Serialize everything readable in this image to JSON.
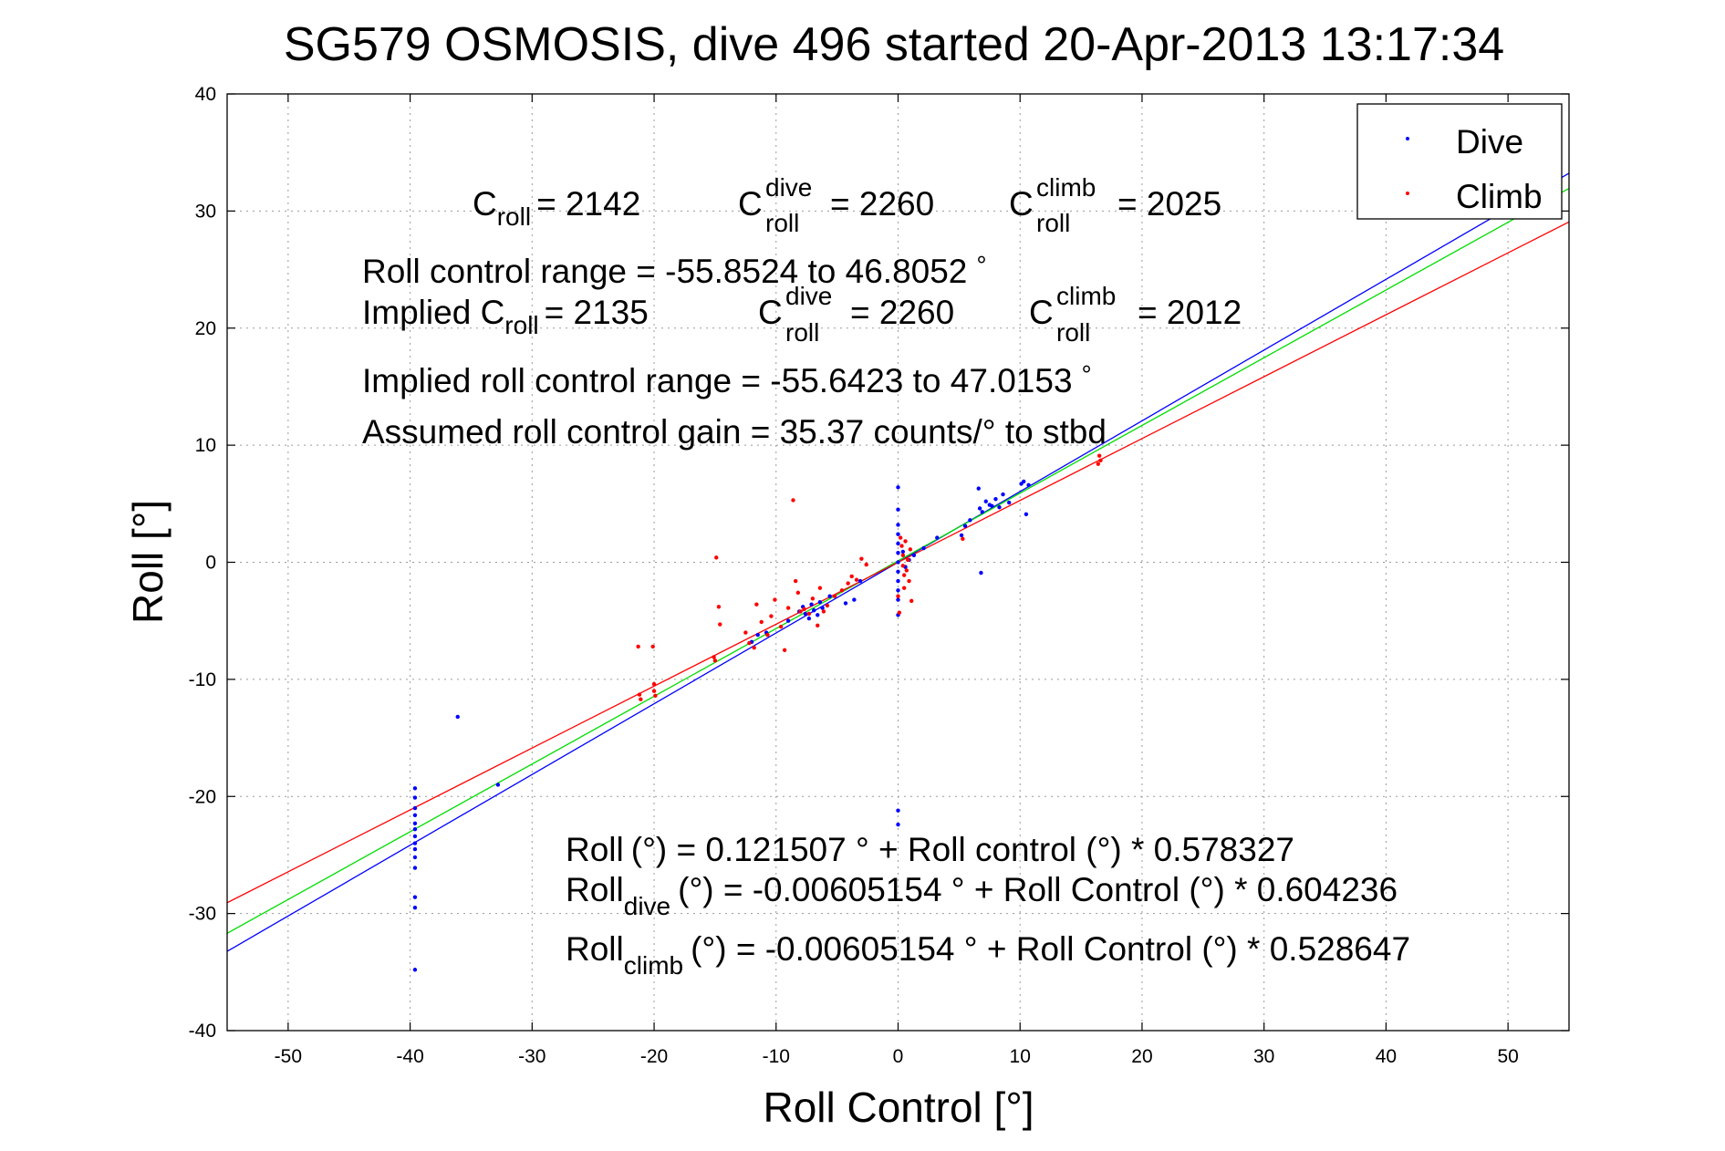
{
  "chart_data": {
    "type": "scatter",
    "title": "SG579 OSMOSIS, dive 496 started 20-Apr-2013 13:17:34",
    "xlabel": "Roll Control [°]",
    "ylabel": "Roll [°]",
    "xlim": [
      -55,
      55
    ],
    "ylim": [
      -40,
      40
    ],
    "xticks": [
      -50,
      -40,
      -30,
      -20,
      -10,
      0,
      10,
      20,
      30,
      40,
      50
    ],
    "yticks": [
      -40,
      -30,
      -20,
      -10,
      0,
      10,
      20,
      30,
      40
    ],
    "grid": true,
    "legend_position": "top-right",
    "series": [
      {
        "name": "Dive",
        "color": "#0000ff",
        "points": [
          [
            -39.6,
            -19.3
          ],
          [
            -39.6,
            -20.1
          ],
          [
            -39.6,
            -21.0
          ],
          [
            -39.6,
            -21.6
          ],
          [
            -39.6,
            -22.3
          ],
          [
            -39.6,
            -22.8
          ],
          [
            -39.6,
            -23.4
          ],
          [
            -39.6,
            -24.0
          ],
          [
            -39.6,
            -24.5
          ],
          [
            -39.6,
            -25.2
          ],
          [
            -39.6,
            -26.1
          ],
          [
            -39.6,
            -28.6
          ],
          [
            -39.6,
            -29.5
          ],
          [
            -39.6,
            -34.8
          ],
          [
            -36.1,
            -13.2
          ],
          [
            -32.8,
            -19.0
          ],
          [
            -12.0,
            -6.8
          ],
          [
            -11.5,
            -6.2
          ],
          [
            -10.8,
            -6.0
          ],
          [
            -9.0,
            -5.0
          ],
          [
            -8.1,
            -4.2
          ],
          [
            -7.8,
            -3.8
          ],
          [
            -7.6,
            -4.4
          ],
          [
            -7.3,
            -4.8
          ],
          [
            -7.1,
            -3.6
          ],
          [
            -6.9,
            -4.1
          ],
          [
            -6.6,
            -4.5
          ],
          [
            -6.4,
            -3.4
          ],
          [
            -6.2,
            -3.9
          ],
          [
            -5.6,
            -2.9
          ],
          [
            -4.3,
            -3.5
          ],
          [
            -3.6,
            -3.2
          ],
          [
            -3.1,
            -1.6
          ],
          [
            0.0,
            6.4
          ],
          [
            0.0,
            4.5
          ],
          [
            0.0,
            3.2
          ],
          [
            0.0,
            2.4
          ],
          [
            0.0,
            1.6
          ],
          [
            0.0,
            0.8
          ],
          [
            0.0,
            0.0
          ],
          [
            0.0,
            -0.8
          ],
          [
            0.0,
            -1.6
          ],
          [
            0.0,
            -2.4
          ],
          [
            0.0,
            -3.2
          ],
          [
            0.0,
            -4.5
          ],
          [
            0.0,
            -21.2
          ],
          [
            0.0,
            -22.4
          ],
          [
            0.4,
            0.9
          ],
          [
            0.6,
            -0.4
          ],
          [
            0.9,
            0.2
          ],
          [
            1.3,
            0.6
          ],
          [
            2.1,
            1.2
          ],
          [
            3.2,
            2.1
          ],
          [
            5.2,
            2.3
          ],
          [
            5.5,
            3.1
          ],
          [
            5.9,
            3.6
          ],
          [
            6.6,
            6.3
          ],
          [
            6.7,
            4.6
          ],
          [
            6.8,
            -0.9
          ],
          [
            6.9,
            4.3
          ],
          [
            7.2,
            5.2
          ],
          [
            7.5,
            4.9
          ],
          [
            7.7,
            4.8
          ],
          [
            8.0,
            5.4
          ],
          [
            8.3,
            4.7
          ],
          [
            8.6,
            5.8
          ],
          [
            9.1,
            5.1
          ],
          [
            10.1,
            6.7
          ],
          [
            10.3,
            6.9
          ],
          [
            10.5,
            4.1
          ],
          [
            10.7,
            6.6
          ]
        ]
      },
      {
        "name": "Climb",
        "color": "#ff0000",
        "points": [
          [
            -21.3,
            -7.2
          ],
          [
            -21.2,
            -11.3
          ],
          [
            -21.1,
            -11.7
          ],
          [
            -20.1,
            -7.2
          ],
          [
            -20.0,
            -10.4
          ],
          [
            -20.0,
            -11.0
          ],
          [
            -19.9,
            -11.4
          ],
          [
            -15.1,
            -8.1
          ],
          [
            -15.0,
            -8.4
          ],
          [
            -14.9,
            0.4
          ],
          [
            -14.7,
            -3.8
          ],
          [
            -14.6,
            -5.3
          ],
          [
            -12.5,
            -6.0
          ],
          [
            -12.2,
            -6.9
          ],
          [
            -11.8,
            -7.3
          ],
          [
            -11.6,
            -3.6
          ],
          [
            -11.2,
            -5.1
          ],
          [
            -10.7,
            -6.2
          ],
          [
            -10.4,
            -4.6
          ],
          [
            -10.1,
            -3.2
          ],
          [
            -9.6,
            -5.5
          ],
          [
            -9.3,
            -7.5
          ],
          [
            -9.0,
            -3.9
          ],
          [
            -8.6,
            5.3
          ],
          [
            -8.4,
            -1.6
          ],
          [
            -8.2,
            -2.6
          ],
          [
            -8.0,
            -4.2
          ],
          [
            -7.7,
            -4.0
          ],
          [
            -7.3,
            -4.4
          ],
          [
            -7.0,
            -3.1
          ],
          [
            -6.6,
            -5.4
          ],
          [
            -6.4,
            -2.2
          ],
          [
            -6.1,
            -4.2
          ],
          [
            -5.8,
            -3.7
          ],
          [
            -5.2,
            -2.9
          ],
          [
            -4.6,
            -2.4
          ],
          [
            -4.1,
            -1.8
          ],
          [
            -3.8,
            -1.2
          ],
          [
            -3.4,
            -1.5
          ],
          [
            -3.0,
            0.3
          ],
          [
            -2.6,
            -0.2
          ],
          [
            0.0,
            -2.9
          ],
          [
            0.1,
            -4.3
          ],
          [
            0.2,
            2.1
          ],
          [
            0.3,
            1.4
          ],
          [
            0.4,
            0.6
          ],
          [
            0.4,
            -0.3
          ],
          [
            0.5,
            -1.1
          ],
          [
            0.5,
            -2.2
          ],
          [
            0.6,
            1.8
          ],
          [
            0.7,
            -0.7
          ],
          [
            0.8,
            0.2
          ],
          [
            0.9,
            -1.6
          ],
          [
            1.0,
            1.1
          ],
          [
            1.1,
            -3.3
          ],
          [
            5.3,
            2.0
          ],
          [
            16.4,
            8.4
          ],
          [
            16.5,
            9.1
          ],
          [
            16.6,
            8.7
          ]
        ]
      }
    ],
    "fit_lines": [
      {
        "name": "Dive fit",
        "color": "#0000ff",
        "x": [
          -55,
          55
        ],
        "y": [
          -33.23,
          33.23
        ]
      },
      {
        "name": "Combined fit",
        "color": "#00dd00",
        "x": [
          -55,
          55
        ],
        "y": [
          -31.69,
          31.93
        ]
      },
      {
        "name": "Climb fit",
        "color": "#ff0000",
        "x": [
          -55,
          55
        ],
        "y": [
          -29.08,
          29.07
        ]
      }
    ],
    "annotations": {
      "c_roll": "2142",
      "c_roll_dive": "2260",
      "c_roll_climb": "2025",
      "roll_control_range": "Roll control range = -55.8524 to 46.8052",
      "implied_c_roll": "2135",
      "implied_c_roll_dive": "2260",
      "implied_c_roll_climb": "2012",
      "implied_range": "Implied roll control range = -55.6423 to 47.0153",
      "gain": "Assumed roll control gain = 35.37 counts/° to stbd",
      "fit_all": "(°) = 0.121507 ° + Roll control (°) * 0.578327",
      "fit_dive": "(°) = -0.00605154 ° + Roll Control (°) * 0.604236",
      "fit_climb": "(°) = -0.00605154 ° + Roll Control (°) * 0.528647"
    },
    "labels": {
      "c": "C",
      "roll_sub": "roll",
      "dive_sup": "dive",
      "climb_sup": "climb",
      "eq": "= ",
      "implied_prefix": "Implied ",
      "degree": "°",
      "roll": "Roll",
      "dive_sub": "dive",
      "climb_sub": "climb"
    }
  }
}
